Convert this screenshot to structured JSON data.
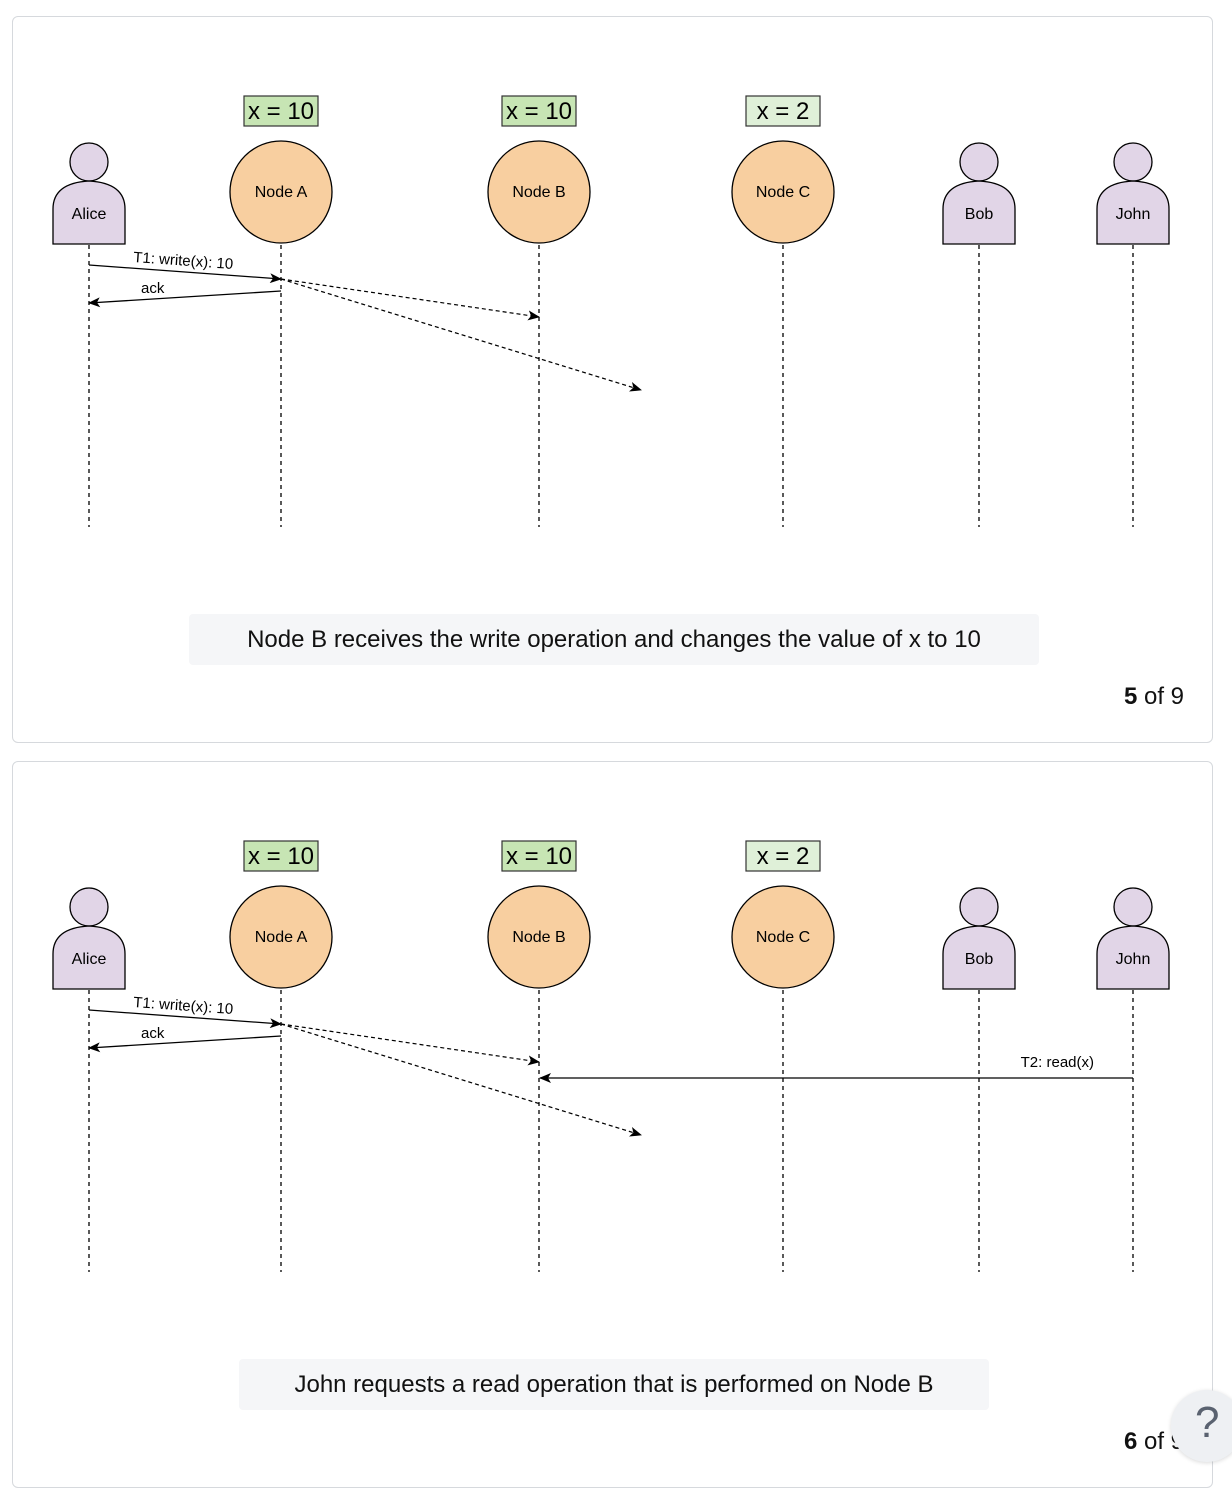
{
  "slides": [
    {
      "caption": "Node B receives the write operation and changes the value of x to 10",
      "current": "5",
      "of_label": "of 9",
      "actors": {
        "alice": "Alice",
        "bob": "Bob",
        "john": "John"
      },
      "nodes": {
        "a": "Node A",
        "b": "Node B",
        "c": "Node C"
      },
      "values": {
        "a": "x = 10",
        "b": "x = 10",
        "c": "x = 2"
      },
      "messages": {
        "write": "T1: write(x): 10",
        "ack": "ack"
      }
    },
    {
      "caption": "John requests a read operation that is performed on Node B",
      "current": "6",
      "of_label": "of 9",
      "actors": {
        "alice": "Alice",
        "bob": "Bob",
        "john": "John"
      },
      "nodes": {
        "a": "Node A",
        "b": "Node B",
        "c": "Node C"
      },
      "values": {
        "a": "x = 10",
        "b": "x = 10",
        "c": "x = 2"
      },
      "messages": {
        "write": "T1: write(x): 10",
        "ack": "ack",
        "read": "T2: read(x)"
      }
    }
  ],
  "help": {
    "label": "?"
  },
  "colors": {
    "actor_fill": "#e1d5e7",
    "node_fill": "#f8cfa0",
    "value_updated": "#c7e5b4",
    "value_stale": "#dff0d8"
  }
}
